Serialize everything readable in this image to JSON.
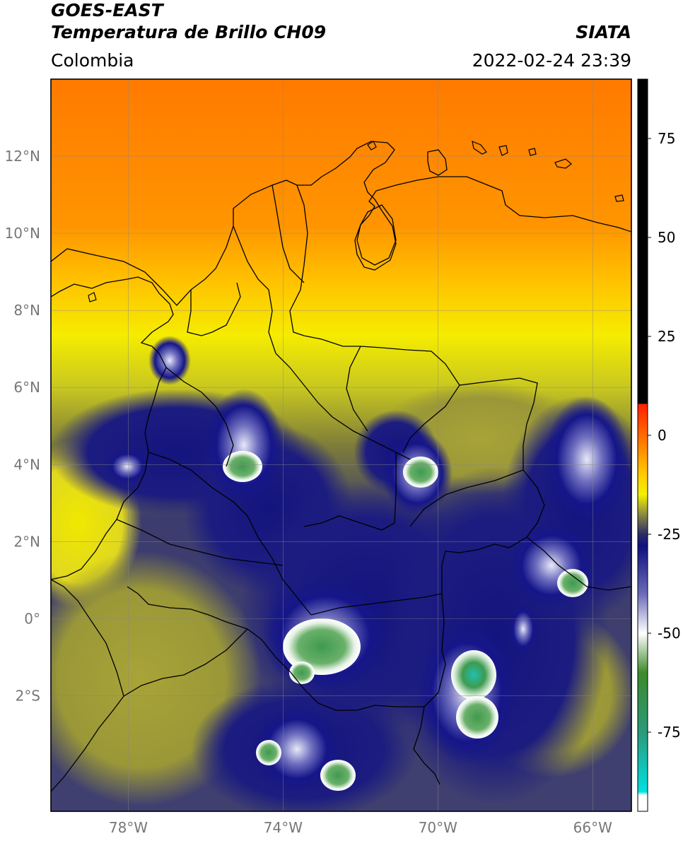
{
  "header": {
    "satellite": "GOES-EAST",
    "product": "Temperatura de Brillo CH09",
    "region": "Colombia",
    "organization": "SIATA",
    "datetime": "2022-02-24 23:39"
  },
  "map": {
    "lon_range": [
      -80,
      -65
    ],
    "lat_range": [
      -5,
      14
    ],
    "lon_ticks": [
      {
        "value": -78,
        "label": "78°W"
      },
      {
        "value": -74,
        "label": "74°W"
      },
      {
        "value": -70,
        "label": "70°W"
      },
      {
        "value": -66,
        "label": "66°W"
      }
    ],
    "lat_ticks": [
      {
        "value": 12,
        "label": "12°N"
      },
      {
        "value": 10,
        "label": "10°N"
      },
      {
        "value": 8,
        "label": "8°N"
      },
      {
        "value": 6,
        "label": "6°N"
      },
      {
        "value": 4,
        "label": "4°N"
      },
      {
        "value": 2,
        "label": "2°N"
      },
      {
        "value": 0,
        "label": "0°"
      },
      {
        "value": -2,
        "label": "2°S"
      }
    ],
    "gridlines": true
  },
  "colorbar": {
    "range": [
      -95,
      90
    ],
    "ticks": [
      {
        "value": 75,
        "label": "75"
      },
      {
        "value": 50,
        "label": "50"
      },
      {
        "value": 25,
        "label": "25"
      },
      {
        "value": 0,
        "label": "0"
      },
      {
        "value": -25,
        "label": "-25"
      },
      {
        "value": -50,
        "label": "-50"
      },
      {
        "value": -75,
        "label": "-75"
      }
    ],
    "stops": [
      {
        "value": 90,
        "color": "#000000"
      },
      {
        "value": 8,
        "color": "#000000"
      },
      {
        "value": 7.9,
        "color": "#ff2000"
      },
      {
        "value": 0,
        "color": "#ff6a00"
      },
      {
        "value": -10,
        "color": "#ffcc00"
      },
      {
        "value": -15,
        "color": "#f3f000"
      },
      {
        "value": -20,
        "color": "#8a8a40"
      },
      {
        "value": -25,
        "color": "#2b2b66"
      },
      {
        "value": -28,
        "color": "#101080"
      },
      {
        "value": -40,
        "color": "#6a6ab8"
      },
      {
        "value": -50,
        "color": "#ffffff"
      },
      {
        "value": -60,
        "color": "#3c8a2a"
      },
      {
        "value": -75,
        "color": "#2b9a7a"
      },
      {
        "value": -90,
        "color": "#00e0e0"
      },
      {
        "value": -91,
        "color": "#ffffff"
      },
      {
        "value": -95,
        "color": "#ffffff"
      }
    ]
  },
  "colors": {
    "hot": "#ff8c00",
    "warm": "#ffd000",
    "mid": "#a3a23a",
    "cold": "#1a1a7a",
    "very_cold": "#ffffff",
    "coldest": "#3a8a3a"
  }
}
